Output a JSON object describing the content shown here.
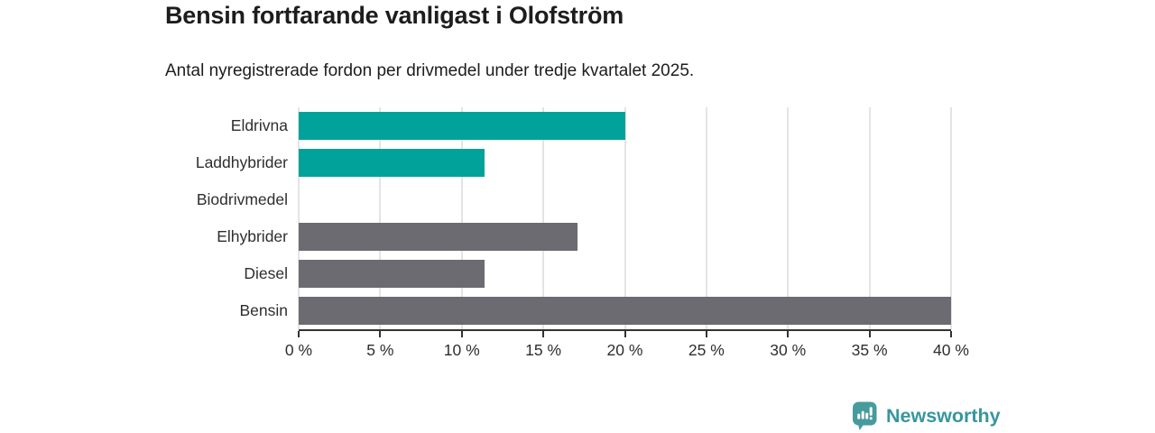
{
  "header": {
    "title": "Bensin fortfarande vanligast i Olofström",
    "subtitle": "Antal nyregistrerade fordon per drivmedel under tredje kvartalet 2025."
  },
  "colors": {
    "electric_teal": "#00a29a",
    "fossil_gray": "#6c6b71",
    "gridline": "#e4e4e6",
    "axis": "#333333",
    "text_dark": "#1d1d1d",
    "tick_text": "#2e2e2e",
    "brand_teal": "#38969d",
    "brand_icon_teal": "#469b9d"
  },
  "chart_data": {
    "type": "bar",
    "orientation": "horizontal",
    "title": "Bensin fortfarande vanligast i Olofström",
    "subtitle": "Antal nyregistrerade fordon per drivmedel under tredje kvartalet 2025.",
    "categories": [
      "Eldrivna",
      "Laddhybrider",
      "Biodrivmedel",
      "Elhybrider",
      "Diesel",
      "Bensin"
    ],
    "values": [
      20.0,
      11.4,
      0,
      17.1,
      11.4,
      40.0
    ],
    "bar_colors": [
      "#00a29a",
      "#00a29a",
      "#6c6b71",
      "#6c6b71",
      "#6c6b71",
      "#6c6b71"
    ],
    "xlabel": "",
    "ylabel": "",
    "xlim": [
      0,
      40
    ],
    "xticks": [
      0,
      5,
      10,
      15,
      20,
      25,
      30,
      35,
      40
    ],
    "xtick_labels": [
      "0 %",
      "5 %",
      "10 %",
      "15 %",
      "20 %",
      "25 %",
      "30 %",
      "35 %",
      "40 %"
    ],
    "grid": "vertical-only",
    "legend": "none",
    "unit": "%"
  },
  "footer": {
    "brand": "Newsworthy",
    "icon": "newsworthy-speech-bubble-bar-chart-icon"
  }
}
